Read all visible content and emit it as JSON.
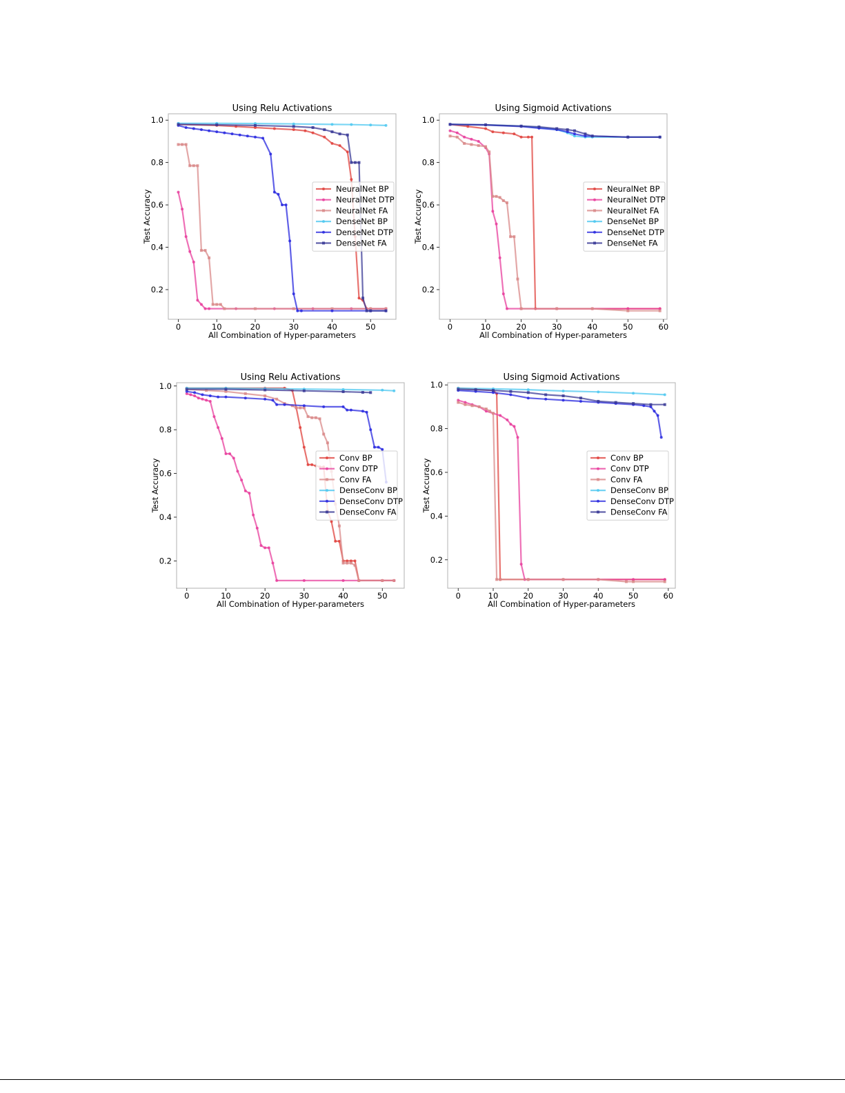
{
  "figure": {
    "axis_xlabel": "All Combination of Hyper-parameters",
    "axis_ylabel": "Test Accuracy"
  },
  "chart_data": [
    {
      "type": "line",
      "title": "Using Relu Activations",
      "xlabel": "All Combination of Hyper-parameters",
      "ylabel": "Test Accuracy",
      "xlim": [
        -2.6,
        56.6
      ],
      "ylim": [
        0.06,
        1.03
      ],
      "xticks": [
        0,
        10,
        20,
        30,
        40,
        50
      ],
      "yticks": [
        0.2,
        0.4,
        0.6,
        0.8,
        1.0
      ],
      "legend_position": "right",
      "series": [
        {
          "name": "NeuralNet BP",
          "color": "#e0443f",
          "marker": "circle",
          "x": [
            0,
            10,
            15,
            20,
            25,
            30,
            33,
            35,
            38,
            40,
            42,
            44,
            45,
            46,
            47,
            48,
            49,
            50,
            54
          ],
          "y": [
            0.98,
            0.975,
            0.97,
            0.965,
            0.96,
            0.955,
            0.95,
            0.94,
            0.92,
            0.89,
            0.88,
            0.85,
            0.72,
            0.45,
            0.16,
            0.15,
            0.11,
            0.11,
            0.11
          ]
        },
        {
          "name": "NeuralNet DTP",
          "color": "#e8409e",
          "marker": "circle",
          "x": [
            0,
            1,
            2,
            3,
            4,
            5,
            6,
            7,
            8,
            15,
            25,
            35,
            45,
            54
          ],
          "y": [
            0.66,
            0.58,
            0.45,
            0.38,
            0.33,
            0.15,
            0.13,
            0.11,
            0.11,
            0.11,
            0.11,
            0.11,
            0.11,
            0.11
          ]
        },
        {
          "name": "NeuralNet FA",
          "color": "#d98a8a",
          "marker": "square",
          "x": [
            0,
            1,
            2,
            3,
            4,
            5,
            6,
            7,
            8,
            9,
            10,
            11,
            12,
            20,
            30,
            40,
            50,
            54
          ],
          "y": [
            0.885,
            0.885,
            0.885,
            0.785,
            0.785,
            0.785,
            0.385,
            0.385,
            0.35,
            0.13,
            0.13,
            0.13,
            0.11,
            0.11,
            0.11,
            0.11,
            0.11,
            0.11
          ]
        },
        {
          "name": "DenseNet BP",
          "color": "#4fc8f0",
          "marker": "circle",
          "x": [
            0,
            10,
            20,
            30,
            40,
            45,
            50,
            54
          ],
          "y": [
            0.985,
            0.985,
            0.984,
            0.982,
            0.98,
            0.979,
            0.977,
            0.975
          ]
        },
        {
          "name": "DenseNet DTP",
          "color": "#2a2adf",
          "marker": "circle",
          "x": [
            0,
            2,
            4,
            6,
            8,
            10,
            12,
            14,
            16,
            18,
            20,
            22,
            24,
            25,
            26,
            27,
            28,
            29,
            30,
            31,
            32,
            40,
            50,
            54
          ],
          "y": [
            0.975,
            0.965,
            0.96,
            0.955,
            0.95,
            0.945,
            0.94,
            0.935,
            0.93,
            0.925,
            0.92,
            0.915,
            0.84,
            0.66,
            0.65,
            0.6,
            0.6,
            0.43,
            0.18,
            0.1,
            0.1,
            0.1,
            0.1,
            0.1
          ]
        },
        {
          "name": "DenseNet FA",
          "color": "#3a3a96",
          "marker": "square",
          "x": [
            0,
            10,
            20,
            30,
            35,
            38,
            40,
            42,
            44,
            45,
            46,
            47,
            48,
            49,
            50,
            54
          ],
          "y": [
            0.98,
            0.978,
            0.975,
            0.97,
            0.965,
            0.955,
            0.945,
            0.935,
            0.93,
            0.8,
            0.8,
            0.8,
            0.16,
            0.1,
            0.1,
            0.1
          ]
        }
      ]
    },
    {
      "type": "line",
      "title": "Using Sigmoid Activations",
      "xlabel": "All Combination of Hyper-parameters",
      "ylabel": "Test Accuracy",
      "xlim": [
        -3.0,
        61.0
      ],
      "ylim": [
        0.06,
        1.03
      ],
      "xticks": [
        0,
        10,
        20,
        30,
        40,
        50,
        60
      ],
      "yticks": [
        0.2,
        0.4,
        0.6,
        0.8,
        1.0
      ],
      "legend_position": "right",
      "series": [
        {
          "name": "NeuralNet BP",
          "color": "#e0443f",
          "marker": "circle",
          "x": [
            0,
            5,
            10,
            12,
            15,
            18,
            20,
            22,
            23,
            24,
            30,
            40,
            50,
            59
          ],
          "y": [
            0.98,
            0.97,
            0.96,
            0.945,
            0.94,
            0.935,
            0.92,
            0.92,
            0.92,
            0.11,
            0.11,
            0.11,
            0.11,
            0.11
          ]
        },
        {
          "name": "NeuralNet DTP",
          "color": "#e8409e",
          "marker": "circle",
          "x": [
            0,
            2,
            4,
            6,
            8,
            10,
            11,
            12,
            13,
            14,
            15,
            16,
            20,
            30,
            40,
            50,
            59
          ],
          "y": [
            0.95,
            0.94,
            0.92,
            0.91,
            0.9,
            0.87,
            0.84,
            0.57,
            0.51,
            0.35,
            0.18,
            0.11,
            0.11,
            0.11,
            0.11,
            0.11,
            0.11
          ]
        },
        {
          "name": "NeuralNet FA",
          "color": "#d98a8a",
          "marker": "square",
          "x": [
            0,
            2,
            4,
            6,
            8,
            10,
            11,
            12,
            13,
            14,
            15,
            16,
            17,
            18,
            19,
            20,
            30,
            40,
            50,
            59
          ],
          "y": [
            0.925,
            0.92,
            0.89,
            0.885,
            0.88,
            0.875,
            0.85,
            0.64,
            0.64,
            0.635,
            0.62,
            0.61,
            0.45,
            0.45,
            0.25,
            0.11,
            0.11,
            0.11,
            0.1,
            0.1
          ]
        },
        {
          "name": "DenseNet BP",
          "color": "#4fc8f0",
          "marker": "circle",
          "x": [
            0,
            10,
            20,
            25,
            30,
            33,
            35,
            38,
            40,
            50,
            59
          ],
          "y": [
            0.98,
            0.978,
            0.972,
            0.965,
            0.955,
            0.94,
            0.925,
            0.92,
            0.92,
            0.92,
            0.92
          ]
        },
        {
          "name": "DenseNet DTP",
          "color": "#2a2adf",
          "marker": "circle",
          "x": [
            0,
            10,
            20,
            25,
            30,
            33,
            35,
            38,
            40,
            50,
            59
          ],
          "y": [
            0.98,
            0.977,
            0.97,
            0.962,
            0.955,
            0.945,
            0.935,
            0.925,
            0.925,
            0.92,
            0.92
          ]
        },
        {
          "name": "DenseNet FA",
          "color": "#3a3a96",
          "marker": "square",
          "x": [
            0,
            10,
            20,
            25,
            30,
            33,
            35,
            38,
            40,
            50,
            59
          ],
          "y": [
            0.98,
            0.978,
            0.972,
            0.968,
            0.96,
            0.955,
            0.95,
            0.935,
            0.925,
            0.92,
            0.92
          ]
        }
      ]
    },
    {
      "type": "line",
      "title": "Using Relu Activations",
      "xlabel": "All Combination of Hyper-parameters",
      "ylabel": "Test Accuracy",
      "xlim": [
        -2.6,
        55.6
      ],
      "ylim": [
        0.075,
        1.015
      ],
      "xticks": [
        0,
        10,
        20,
        30,
        40,
        50
      ],
      "yticks": [
        0.2,
        0.4,
        0.6,
        0.8,
        1.0
      ],
      "legend_position": "right",
      "series": [
        {
          "name": "Conv BP",
          "color": "#e0443f",
          "marker": "circle",
          "x": [
            0,
            10,
            20,
            25,
            27,
            28,
            29,
            30,
            31,
            32,
            33,
            34,
            35,
            36,
            37,
            38,
            39,
            40,
            41,
            42,
            43,
            44,
            50,
            53
          ],
          "y": [
            0.99,
            0.99,
            0.99,
            0.99,
            0.98,
            0.9,
            0.81,
            0.72,
            0.64,
            0.64,
            0.635,
            0.63,
            0.63,
            0.43,
            0.38,
            0.29,
            0.29,
            0.2,
            0.2,
            0.2,
            0.2,
            0.11,
            0.11,
            0.11
          ]
        },
        {
          "name": "Conv DTP",
          "color": "#e8409e",
          "marker": "circle",
          "x": [
            0,
            1,
            2,
            3,
            4,
            5,
            6,
            7,
            8,
            9,
            10,
            11,
            12,
            13,
            14,
            15,
            16,
            17,
            18,
            19,
            20,
            21,
            22,
            23,
            30,
            40,
            50,
            53
          ],
          "y": [
            0.965,
            0.96,
            0.955,
            0.945,
            0.94,
            0.935,
            0.93,
            0.86,
            0.81,
            0.76,
            0.69,
            0.69,
            0.67,
            0.61,
            0.57,
            0.52,
            0.51,
            0.41,
            0.35,
            0.27,
            0.26,
            0.26,
            0.19,
            0.11,
            0.11,
            0.11,
            0.11,
            0.11
          ]
        },
        {
          "name": "Conv FA",
          "color": "#d98a8a",
          "marker": "square",
          "x": [
            0,
            5,
            10,
            15,
            20,
            23,
            25,
            27,
            28,
            29,
            30,
            31,
            32,
            33,
            34,
            35,
            36,
            37,
            38,
            39,
            40,
            41,
            42,
            43,
            44,
            50,
            53
          ],
          "y": [
            0.985,
            0.98,
            0.975,
            0.965,
            0.955,
            0.94,
            0.92,
            0.91,
            0.9,
            0.9,
            0.9,
            0.86,
            0.855,
            0.855,
            0.85,
            0.78,
            0.74,
            0.61,
            0.46,
            0.36,
            0.19,
            0.19,
            0.19,
            0.18,
            0.11,
            0.11,
            0.11
          ]
        },
        {
          "name": "DenseConv BP",
          "color": "#4fc8f0",
          "marker": "circle",
          "x": [
            0,
            10,
            20,
            30,
            40,
            50,
            53
          ],
          "y": [
            0.99,
            0.99,
            0.988,
            0.986,
            0.984,
            0.981,
            0.978
          ]
        },
        {
          "name": "DenseConv DTP",
          "color": "#2a2adf",
          "marker": "circle",
          "x": [
            0,
            2,
            4,
            6,
            8,
            10,
            15,
            20,
            22,
            23,
            25,
            30,
            35,
            40,
            41,
            42,
            45,
            46,
            47,
            48,
            49,
            50,
            51
          ],
          "y": [
            0.975,
            0.97,
            0.96,
            0.955,
            0.95,
            0.95,
            0.945,
            0.94,
            0.935,
            0.915,
            0.915,
            0.91,
            0.905,
            0.905,
            0.89,
            0.89,
            0.885,
            0.88,
            0.8,
            0.72,
            0.72,
            0.71,
            0.56
          ]
        },
        {
          "name": "DenseConv FA",
          "color": "#3a3a96",
          "marker": "square",
          "x": [
            0,
            10,
            20,
            30,
            40,
            45,
            47
          ],
          "y": [
            0.985,
            0.985,
            0.982,
            0.978,
            0.974,
            0.971,
            0.97
          ]
        }
      ]
    },
    {
      "type": "line",
      "title": "Using Sigmoid Activations",
      "xlabel": "All Combination of Hyper-parameters",
      "ylabel": "Test Accuracy",
      "xlim": [
        -3.0,
        62.0
      ],
      "ylim": [
        0.07,
        1.01
      ],
      "xticks": [
        0,
        10,
        20,
        30,
        40,
        50,
        60
      ],
      "yticks": [
        0.2,
        0.4,
        0.6,
        0.8,
        1.0
      ],
      "legend_position": "right",
      "series": [
        {
          "name": "Conv BP",
          "color": "#e0443f",
          "marker": "circle",
          "x": [
            0,
            5,
            10,
            11,
            12,
            20,
            30,
            40,
            50,
            59
          ],
          "y": [
            0.985,
            0.98,
            0.975,
            0.96,
            0.11,
            0.11,
            0.11,
            0.11,
            0.11,
            0.11
          ]
        },
        {
          "name": "Conv DTP",
          "color": "#e8409e",
          "marker": "circle",
          "x": [
            0,
            2,
            4,
            6,
            8,
            10,
            12,
            14,
            15,
            16,
            17,
            18,
            19,
            20,
            30,
            40,
            50,
            59
          ],
          "y": [
            0.93,
            0.92,
            0.91,
            0.9,
            0.88,
            0.87,
            0.86,
            0.84,
            0.82,
            0.81,
            0.76,
            0.18,
            0.11,
            0.11,
            0.11,
            0.11,
            0.11,
            0.11
          ]
        },
        {
          "name": "Conv FA",
          "color": "#d98a8a",
          "marker": "square",
          "x": [
            0,
            2,
            4,
            6,
            8,
            9,
            10,
            11,
            12,
            20,
            30,
            40,
            48,
            50,
            59
          ],
          "y": [
            0.92,
            0.91,
            0.905,
            0.9,
            0.89,
            0.88,
            0.87,
            0.11,
            0.11,
            0.11,
            0.11,
            0.11,
            0.1,
            0.1,
            0.1
          ]
        },
        {
          "name": "DenseConv BP",
          "color": "#4fc8f0",
          "marker": "circle",
          "x": [
            0,
            10,
            20,
            30,
            40,
            50,
            59
          ],
          "y": [
            0.985,
            0.982,
            0.978,
            0.972,
            0.968,
            0.962,
            0.955
          ]
        },
        {
          "name": "DenseConv DTP",
          "color": "#2a2adf",
          "marker": "circle",
          "x": [
            0,
            5,
            10,
            15,
            20,
            25,
            30,
            35,
            40,
            45,
            50,
            53,
            55,
            56,
            57,
            58
          ],
          "y": [
            0.975,
            0.97,
            0.965,
            0.955,
            0.94,
            0.935,
            0.93,
            0.925,
            0.92,
            0.915,
            0.91,
            0.905,
            0.9,
            0.88,
            0.86,
            0.76
          ]
        },
        {
          "name": "DenseConv FA",
          "color": "#3a3a96",
          "marker": "square",
          "x": [
            0,
            5,
            10,
            15,
            20,
            25,
            30,
            35,
            40,
            45,
            50,
            55,
            59
          ],
          "y": [
            0.98,
            0.978,
            0.975,
            0.97,
            0.965,
            0.955,
            0.95,
            0.94,
            0.925,
            0.92,
            0.915,
            0.91,
            0.91
          ]
        }
      ]
    }
  ]
}
